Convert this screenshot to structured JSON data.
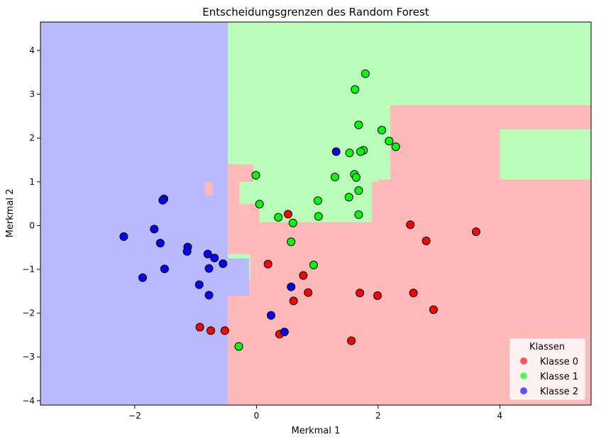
{
  "chart_data": {
    "type": "scatter",
    "title": "Entscheidungsgrenzen des Random Forest",
    "xlabel": "Merkmal 1",
    "ylabel": "Merkmal 2",
    "xlim": [
      -3.55,
      5.5
    ],
    "ylim": [
      -4.1,
      4.65
    ],
    "xticks": [
      -2,
      0,
      2,
      4
    ],
    "xtick_labels": [
      "−2",
      "0",
      "2",
      "4"
    ],
    "yticks": [
      -4,
      -3,
      -2,
      -1,
      0,
      1,
      2,
      3,
      4
    ],
    "ytick_labels": [
      "−4",
      "−3",
      "−2",
      "−1",
      "0",
      "1",
      "2",
      "3",
      "4"
    ],
    "grid": false,
    "legend": {
      "title": "Klassen",
      "placement": "bottom-right"
    },
    "regions": {
      "class0_color": "#ffb9b9",
      "class1_color": "#b9ffb9",
      "class2_color": "#b9b9ff",
      "vertical_boundary_x": -0.47
    },
    "series": [
      {
        "name": "Klasse 0",
        "color": "#ff0000",
        "legend_color": "#ff5555",
        "points": [
          [
            0.52,
            0.26
          ],
          [
            -0.93,
            -2.32
          ],
          [
            -0.75,
            -2.4
          ],
          [
            -0.52,
            -2.4
          ],
          [
            0.19,
            -0.88
          ],
          [
            0.38,
            -2.48
          ],
          [
            0.77,
            -1.14
          ],
          [
            0.85,
            -1.53
          ],
          [
            0.61,
            -1.72
          ],
          [
            1.56,
            -2.63
          ],
          [
            1.7,
            -1.54
          ],
          [
            1.99,
            -1.6
          ],
          [
            2.53,
            0.02
          ],
          [
            2.58,
            -1.54
          ],
          [
            2.79,
            -0.35
          ],
          [
            2.91,
            -1.92
          ],
          [
            3.61,
            -0.14
          ]
        ]
      },
      {
        "name": "Klasse 1",
        "color": "#00ff00",
        "legend_color": "#55ff55",
        "points": [
          [
            1.79,
            3.47
          ],
          [
            1.62,
            3.11
          ],
          [
            1.68,
            2.3
          ],
          [
            2.06,
            2.18
          ],
          [
            2.18,
            1.93
          ],
          [
            2.29,
            1.8
          ],
          [
            1.76,
            1.72
          ],
          [
            1.71,
            1.69
          ],
          [
            1.53,
            1.66
          ],
          [
            1.61,
            1.17
          ],
          [
            1.64,
            1.1
          ],
          [
            1.29,
            1.11
          ],
          [
            1.68,
            0.8
          ],
          [
            1.52,
            0.65
          ],
          [
            1.01,
            0.57
          ],
          [
            1.68,
            0.25
          ],
          [
            1.02,
            0.21
          ],
          [
            0.36,
            0.19
          ],
          [
            0.6,
            0.06
          ],
          [
            0.05,
            0.49
          ],
          [
            -0.01,
            1.15
          ],
          [
            0.57,
            -0.37
          ],
          [
            0.94,
            -0.9
          ],
          [
            -0.29,
            -2.76
          ]
        ]
      },
      {
        "name": "Klasse 2",
        "color": "#0000ff",
        "legend_color": "#5555ff",
        "points": [
          [
            1.31,
            1.69
          ],
          [
            -1.52,
            0.61
          ],
          [
            -1.54,
            0.58
          ],
          [
            -2.18,
            -0.25
          ],
          [
            -1.68,
            -0.08
          ],
          [
            -1.58,
            -0.4
          ],
          [
            -1.51,
            -0.99
          ],
          [
            -1.87,
            -1.19
          ],
          [
            -1.13,
            -0.49
          ],
          [
            -1.14,
            -0.59
          ],
          [
            -0.8,
            -0.65
          ],
          [
            -0.69,
            -0.74
          ],
          [
            -0.55,
            -0.87
          ],
          [
            -0.78,
            -0.98
          ],
          [
            -0.94,
            -1.35
          ],
          [
            -0.78,
            -1.59
          ],
          [
            0.57,
            -1.4
          ],
          [
            0.24,
            -2.05
          ],
          [
            0.46,
            -2.43
          ]
        ]
      }
    ]
  }
}
